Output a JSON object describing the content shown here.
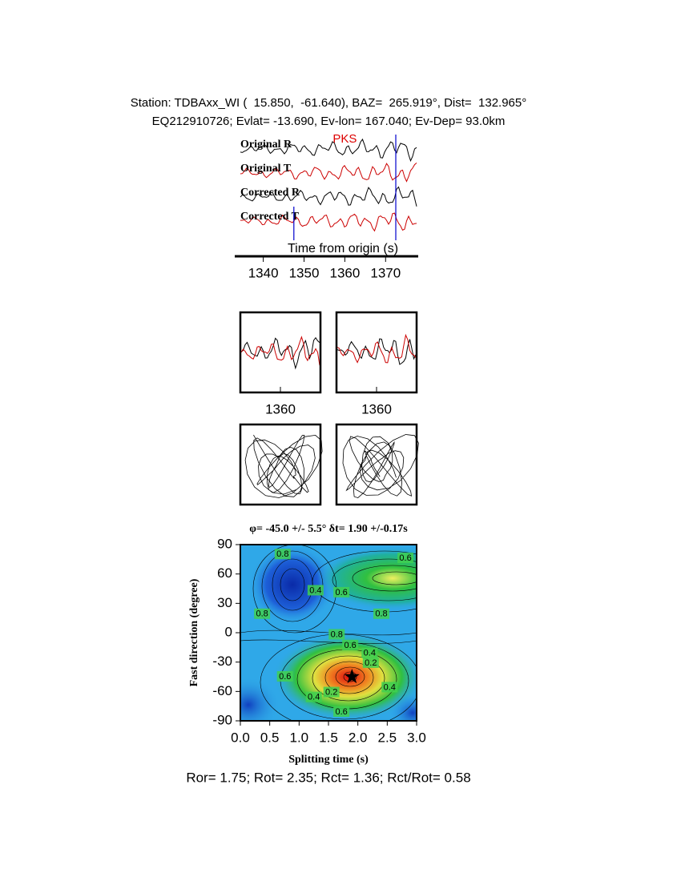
{
  "chart_data": [
    {
      "type": "waveform",
      "title": "Station: TDBAxx_WI (  15.850,  -61.640), BAZ=  265.919°, Dist=  132.965°",
      "subtitle": "EQ212910726; Evlat= -13.690, Ev-lon= 167.040; Ev-Dep= 93.0km",
      "phase": "PKS",
      "phase_time": 1360,
      "window": [
        1347.5,
        1372.5
      ],
      "xlabel": "Time from origin (s)",
      "xlim": [
        1333,
        1378
      ],
      "xticks": [
        1340,
        1350,
        1360,
        1370
      ],
      "traces": [
        {
          "name": "Original R",
          "color": "#000000"
        },
        {
          "name": "Original T",
          "color": "#cc0000"
        },
        {
          "name": "Corrected R",
          "color": "#000000"
        },
        {
          "name": "Corrected T",
          "color": "#cc0000"
        }
      ]
    },
    {
      "type": "waveform-window",
      "xlim": [
        1350,
        1370
      ],
      "xticks": [
        1360
      ]
    },
    {
      "type": "waveform-window",
      "xlim": [
        1350,
        1370
      ],
      "xticks": [
        1360
      ]
    },
    {
      "type": "particle-motion"
    },
    {
      "type": "particle-motion"
    },
    {
      "type": "contour",
      "title": "φ= -45.0 +/- 5.5° δt= 1.90 +/-0.17s",
      "xlabel": "Splitting time (s)",
      "ylabel": "Fast direction (degree)",
      "xlim": [
        0,
        3
      ],
      "ylim": [
        -90,
        90
      ],
      "xticks": [
        {
          "value": 0,
          "label": "0.0"
        },
        0.5,
        {
          "value": 1,
          "label": "1.0"
        },
        1.5,
        {
          "value": 2,
          "label": "2.0"
        },
        2.5,
        {
          "value": 3,
          "label": "3.0"
        }
      ],
      "yticks": [
        -90,
        -60,
        -30,
        0,
        30,
        60,
        90
      ],
      "best": [
        1.9,
        -45
      ],
      "contour_labels": [
        {
          "x": 0.72,
          "y": 80,
          "text": "0.8"
        },
        {
          "x": 2.81,
          "y": 76,
          "text": "0.6"
        },
        {
          "x": 1.72,
          "y": 41,
          "text": "0.6"
        },
        {
          "x": 1.28,
          "y": 43,
          "text": "0.4"
        },
        {
          "x": 0.37,
          "y": 19,
          "text": "0.8"
        },
        {
          "x": 2.4,
          "y": 19,
          "text": "0.8"
        },
        {
          "x": 1.64,
          "y": -2,
          "text": "0.8"
        },
        {
          "x": 1.87,
          "y": -13,
          "text": "0.6"
        },
        {
          "x": 2.2,
          "y": -21,
          "text": "0.4"
        },
        {
          "x": 2.22,
          "y": -31,
          "text": "0.2"
        },
        {
          "x": 0.76,
          "y": -45,
          "text": "0.6"
        },
        {
          "x": 1.55,
          "y": -61,
          "text": "0.2"
        },
        {
          "x": 1.25,
          "y": -66,
          "text": "0.4"
        },
        {
          "x": 2.54,
          "y": -56,
          "text": "0.4"
        },
        {
          "x": 1.72,
          "y": -81,
          "text": "0.6"
        }
      ]
    }
  ],
  "footer": "Ror= 1.75; Rot= 2.35; Rct= 1.36; Rct/Rot= 0.58"
}
